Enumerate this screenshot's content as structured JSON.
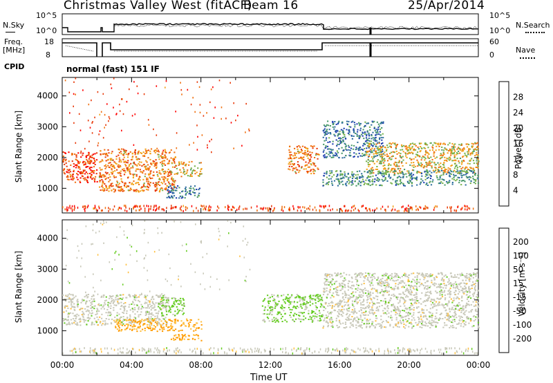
{
  "header": {
    "station": "Christmas Valley West (fitACF)",
    "beam": "Beam 16",
    "date": "25/Apr/2014",
    "cpid_label": "CPID",
    "cpid_value": "normal (fast) 151 IF"
  },
  "strip_noise": {
    "left_label": "N.Sky",
    "right_label": "N.Search",
    "left_ticks": [
      "10^5",
      "10^0"
    ],
    "right_ticks": [
      "10^5",
      "10^0"
    ]
  },
  "strip_freq": {
    "left_label_1": "Freq.",
    "left_label_2": "[MHz]",
    "right_label": "Nave",
    "left_ticks": [
      "18",
      "8"
    ],
    "right_ticks": [
      "60",
      "0"
    ]
  },
  "colors": {
    "power_scale": [
      "#0000ff",
      "#1f3fb0",
      "#2e6e9e",
      "#4a9a6a",
      "#78b24a",
      "#f2a21a",
      "#f07010",
      "#e83a0a",
      "#ff0000"
    ],
    "velocity_scale": [
      "#ff0000",
      "#ff5a00",
      "#ff9a00",
      "#ffc040",
      "#c8c8b8",
      "#66cc22",
      "#2a8a3a",
      "#2040a0",
      "#1a2ad0"
    ]
  },
  "power_colorbar": {
    "label": "Power [dB]",
    "ticks": [
      "28",
      "24",
      "20",
      "16",
      "12",
      "8",
      "4"
    ]
  },
  "velocity_colorbar": {
    "label": "Velocity [m s⁻¹]",
    "ticks": [
      "200",
      "100",
      "50",
      "15",
      "-15",
      "-50",
      "-100",
      "-200"
    ]
  },
  "chart_data": [
    {
      "type": "heatmap",
      "title": "",
      "xlabel": "",
      "ylabel": "Slant Range [km]",
      "x_ticks": [
        "00:00",
        "04:00",
        "08:00",
        "12:00",
        "16:00",
        "20:00",
        "00:00"
      ],
      "y_ticks": [
        "1000",
        "2000",
        "3000",
        "4000"
      ],
      "xlim": [
        0,
        24
      ],
      "ylim": [
        200,
        4600
      ],
      "colorbar": "Power [dB]",
      "regions": [
        {
          "t0": 0.0,
          "t1": 2.0,
          "r0": 1200,
          "r1": 2200,
          "value": 26
        },
        {
          "t0": 2.1,
          "t1": 6.5,
          "r0": 900,
          "r1": 2300,
          "value": 22
        },
        {
          "t0": 6.5,
          "t1": 8.0,
          "r0": 1400,
          "r1": 1900,
          "value": 18
        },
        {
          "t0": 6.0,
          "t1": 8.0,
          "r0": 700,
          "r1": 1100,
          "value": 8
        },
        {
          "t0": 13.0,
          "t1": 14.8,
          "r0": 1500,
          "r1": 2400,
          "value": 22
        },
        {
          "t0": 15.0,
          "t1": 18.5,
          "r0": 2000,
          "r1": 3200,
          "value": 8
        },
        {
          "t0": 17.5,
          "t1": 24.0,
          "r0": 1500,
          "r1": 2500,
          "value": 18
        },
        {
          "t0": 15.0,
          "t1": 24.0,
          "r0": 1100,
          "r1": 1600,
          "value": 10
        }
      ]
    },
    {
      "type": "heatmap",
      "title": "",
      "xlabel": "Time UT",
      "ylabel": "Slant Range [km]",
      "x_ticks": [
        "00:00",
        "04:00",
        "08:00",
        "12:00",
        "16:00",
        "20:00",
        "00:00"
      ],
      "y_ticks": [
        "1000",
        "2000",
        "3000",
        "4000"
      ],
      "xlim": [
        0,
        24
      ],
      "ylim": [
        200,
        4600
      ],
      "colorbar": "Velocity [m s⁻¹]",
      "regions": [
        {
          "t0": 0.0,
          "t1": 6.0,
          "r0": 1200,
          "r1": 2200,
          "value": 0
        },
        {
          "t0": 3.0,
          "t1": 8.0,
          "r0": 1000,
          "r1": 1400,
          "value": -80
        },
        {
          "t0": 6.0,
          "t1": 8.0,
          "r0": 700,
          "r1": 900,
          "value": -80
        },
        {
          "t0": 5.5,
          "t1": 7.0,
          "r0": 1500,
          "r1": 2100,
          "value": 40
        },
        {
          "t0": 11.5,
          "t1": 15.0,
          "r0": 1300,
          "r1": 2200,
          "value": 40
        },
        {
          "t0": 15.0,
          "t1": 24.0,
          "r0": 1100,
          "r1": 2900,
          "value": 0
        }
      ]
    }
  ]
}
